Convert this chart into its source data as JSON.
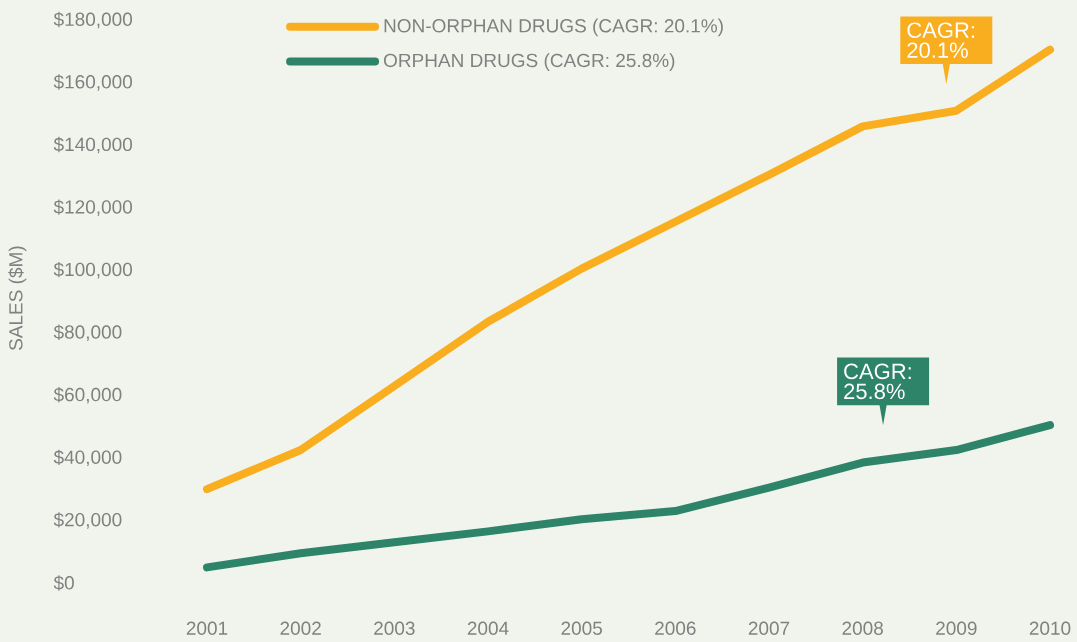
{
  "chart_data": {
    "type": "line",
    "ylabel": "SALES ($M)",
    "categories": [
      "2001",
      "2002",
      "2003",
      "2004",
      "2005",
      "2006",
      "2007",
      "2008",
      "2009",
      "2010"
    ],
    "series": [
      {
        "name": "NON-ORPHAN DRUGS (CAGR: 20.1%)",
        "color": "#f9ae20",
        "values": [
          30000,
          42500,
          63000,
          83500,
          100500,
          115500,
          130500,
          146000,
          151000,
          170500
        ]
      },
      {
        "name": "ORPHAN DRUGS (CAGR: 25.8%)",
        "color": "#2e8468",
        "values": [
          5000,
          9500,
          13000,
          16500,
          20400,
          23000,
          30500,
          38500,
          42500,
          50500
        ]
      }
    ],
    "ylim": [
      0,
      180000
    ],
    "yticks": [
      {
        "value": 0,
        "label": "$0"
      },
      {
        "value": 20000,
        "label": "$20,000"
      },
      {
        "value": 40000,
        "label": "$40,000"
      },
      {
        "value": 60000,
        "label": "$60,000"
      },
      {
        "value": 80000,
        "label": "$80,000"
      },
      {
        "value": 100000,
        "label": "$100,000"
      },
      {
        "value": 120000,
        "label": "$120,000"
      },
      {
        "value": 140000,
        "label": "$140,000"
      },
      {
        "value": 160000,
        "label": "$160,000"
      },
      {
        "value": 180000,
        "label": "$180,000"
      }
    ],
    "annotations": [
      "CAGR: 20.1%",
      "CAGR: 25.8%"
    ],
    "legend": "top",
    "grid": false,
    "marker": "none",
    "line_style": "solid"
  }
}
